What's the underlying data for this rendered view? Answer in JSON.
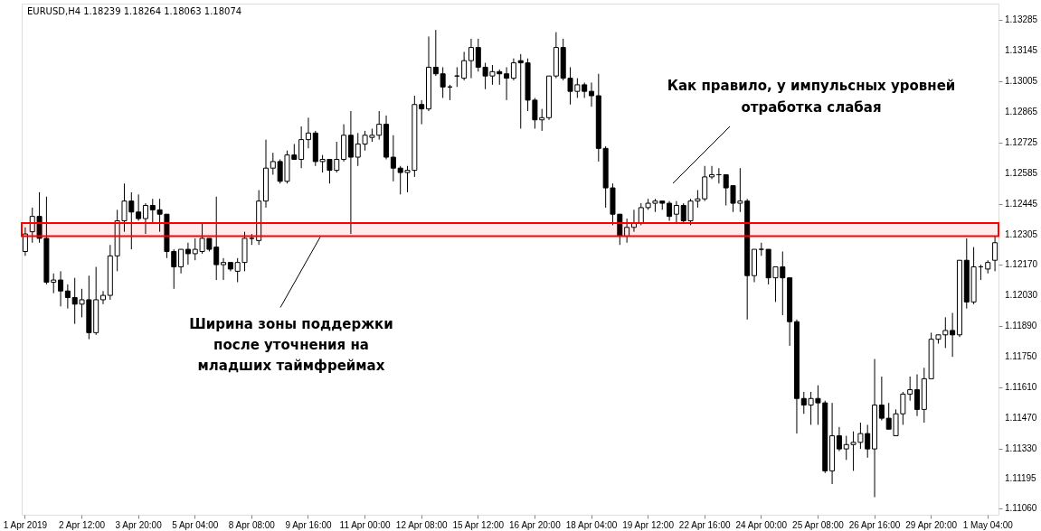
{
  "chart_data": {
    "type": "candlestick",
    "title": "EURUSD,H4  1.18239 1.18264 1.18063 1.18074",
    "categories": [
      "1 Apr 2019",
      null,
      null,
      null,
      null,
      null,
      null,
      null,
      "2 Apr 12:00",
      null,
      null,
      null,
      null,
      null,
      null,
      null,
      "3 Apr 20:00",
      null,
      null,
      null,
      null,
      null,
      null,
      null,
      "5 Apr 04:00",
      null,
      null,
      null,
      null,
      null,
      null,
      null,
      "8 Apr 08:00",
      null,
      null,
      null,
      null,
      null,
      null,
      null,
      "9 Apr 16:00",
      null,
      null,
      null,
      null,
      null,
      null,
      null,
      "11 Apr 00:00",
      null,
      null,
      null,
      null,
      null,
      null,
      null,
      "12 Apr 08:00",
      null,
      null,
      null,
      null,
      null,
      null,
      null,
      "15 Apr 12:00",
      null,
      null,
      null,
      null,
      null,
      null,
      null,
      "16 Apr 20:00",
      null,
      null,
      null,
      null,
      null,
      null,
      null,
      "18 Apr 04:00",
      null,
      null,
      null,
      null,
      null,
      null,
      null,
      "19 Apr 12:00",
      null,
      null,
      null,
      null,
      null,
      null,
      null,
      "22 Apr 16:00",
      null,
      null,
      null,
      null,
      null,
      null,
      null,
      "24 Apr 00:00",
      null,
      null,
      null,
      null,
      null,
      null,
      null,
      "25 Apr 08:00",
      null,
      null,
      null,
      null,
      null,
      null,
      null,
      "26 Apr 16:00",
      null,
      null,
      null,
      null,
      null,
      null,
      null,
      "29 Apr 20:00",
      null,
      null,
      null,
      null,
      null,
      null,
      null,
      "1 May 04:00",
      null
    ],
    "ohlc": [
      [
        1.1223,
        1.1234,
        1.1221,
        1.1231
      ],
      [
        1.1232,
        1.1243,
        1.1227,
        1.1239
      ],
      [
        1.1239,
        1.125,
        1.1227,
        1.1229
      ],
      [
        1.1229,
        1.1248,
        1.1208,
        1.1209
      ],
      [
        1.1209,
        1.1213,
        1.1204,
        1.121
      ],
      [
        1.121,
        1.1214,
        1.1198,
        1.1205
      ],
      [
        1.1205,
        1.1208,
        1.1197,
        1.1202
      ],
      [
        1.1202,
        1.1211,
        1.119,
        1.1199
      ],
      [
        1.1199,
        1.1206,
        1.1193,
        1.1201
      ],
      [
        1.1201,
        1.1212,
        1.1183,
        1.1186
      ],
      [
        1.1186,
        1.1216,
        1.1185,
        1.1201
      ],
      [
        1.1201,
        1.1205,
        1.1199,
        1.1203
      ],
      [
        1.1203,
        1.1226,
        1.1201,
        1.1221
      ],
      [
        1.1221,
        1.1242,
        1.1214,
        1.1237
      ],
      [
        1.1237,
        1.1254,
        1.1232,
        1.1246
      ],
      [
        1.1246,
        1.125,
        1.1224,
        1.1241
      ],
      [
        1.1241,
        1.1249,
        1.1237,
        1.1238
      ],
      [
        1.1238,
        1.1245,
        1.1231,
        1.1244
      ],
      [
        1.1244,
        1.1247,
        1.1236,
        1.1242
      ],
      [
        1.1242,
        1.1247,
        1.1232,
        1.124
      ],
      [
        1.124,
        1.124,
        1.122,
        1.1223
      ],
      [
        1.1223,
        1.1224,
        1.1206,
        1.1216
      ],
      [
        1.1216,
        1.1224,
        1.1213,
        1.1224
      ],
      [
        1.1224,
        1.1227,
        1.1217,
        1.1222
      ],
      [
        1.1222,
        1.1229,
        1.1219,
        1.1224
      ],
      [
        1.1223,
        1.1236,
        1.1222,
        1.1229
      ],
      [
        1.1229,
        1.1229,
        1.1223,
        1.1224
      ],
      [
        1.1225,
        1.1248,
        1.121,
        1.1217
      ],
      [
        1.1217,
        1.122,
        1.121,
        1.1218
      ],
      [
        1.1218,
        1.1218,
        1.1214,
        1.1215
      ],
      [
        1.1214,
        1.122,
        1.1209,
        1.1218
      ],
      [
        1.1218,
        1.1232,
        1.1214,
        1.1229
      ],
      [
        1.1229,
        1.1231,
        1.1226,
        1.1229
      ],
      [
        1.1228,
        1.1251,
        1.1226,
        1.1246
      ],
      [
        1.1246,
        1.1274,
        1.1243,
        1.1261
      ],
      [
        1.1261,
        1.1268,
        1.1258,
        1.1264
      ],
      [
        1.1264,
        1.1265,
        1.1254,
        1.1255
      ],
      [
        1.1255,
        1.1269,
        1.1254,
        1.1267
      ],
      [
        1.1267,
        1.1272,
        1.1265,
        1.1265
      ],
      [
        1.1265,
        1.128,
        1.1261,
        1.1274
      ],
      [
        1.1274,
        1.1284,
        1.127,
        1.1277
      ],
      [
        1.1277,
        1.1278,
        1.1262,
        1.1264
      ],
      [
        1.1264,
        1.1267,
        1.1259,
        1.1265
      ],
      [
        1.1265,
        1.1265,
        1.1254,
        1.126
      ],
      [
        1.126,
        1.1273,
        1.1259,
        1.1265
      ],
      [
        1.1265,
        1.1281,
        1.1264,
        1.1276
      ],
      [
        1.1276,
        1.1287,
        1.1231,
        1.1266
      ],
      [
        1.1266,
        1.1277,
        1.1262,
        1.1272
      ],
      [
        1.1272,
        1.1278,
        1.1269,
        1.1276
      ],
      [
        1.1275,
        1.1279,
        1.1273,
        1.1276
      ],
      [
        1.1276,
        1.1287,
        1.1274,
        1.1281
      ],
      [
        1.1281,
        1.1285,
        1.1265,
        1.1266
      ],
      [
        1.1266,
        1.1276,
        1.1255,
        1.1261
      ],
      [
        1.1261,
        1.1262,
        1.1249,
        1.1259
      ],
      [
        1.1259,
        1.1262,
        1.125,
        1.126
      ],
      [
        1.126,
        1.1294,
        1.1257,
        1.129
      ],
      [
        1.129,
        1.1292,
        1.1281,
        1.1288
      ],
      [
        1.1288,
        1.1321,
        1.1287,
        1.1307
      ],
      [
        1.1307,
        1.1324,
        1.1303,
        1.1304
      ],
      [
        1.1304,
        1.1307,
        1.1293,
        1.1298
      ],
      [
        1.1298,
        1.1299,
        1.1292,
        1.1298
      ],
      [
        1.1303,
        1.1307,
        1.1298,
        1.1303
      ],
      [
        1.1302,
        1.1314,
        1.1301,
        1.131
      ],
      [
        1.131,
        1.132,
        1.1302,
        1.1316
      ],
      [
        1.1316,
        1.132,
        1.1305,
        1.1307
      ],
      [
        1.1307,
        1.1309,
        1.1297,
        1.1303
      ],
      [
        1.1303,
        1.1308,
        1.1299,
        1.1305
      ],
      [
        1.1305,
        1.1306,
        1.1299,
        1.1304
      ],
      [
        1.1304,
        1.1307,
        1.1292,
        1.1302
      ],
      [
        1.1302,
        1.1311,
        1.1301,
        1.1309
      ],
      [
        1.131,
        1.1313,
        1.1279,
        1.1309
      ],
      [
        1.1309,
        1.1311,
        1.1287,
        1.1292
      ],
      [
        1.1292,
        1.1293,
        1.1279,
        1.1283
      ],
      [
        1.1283,
        1.1288,
        1.1278,
        1.1284
      ],
      [
        1.1284,
        1.1303,
        1.1283,
        1.1303
      ],
      [
        1.1303,
        1.1323,
        1.1302,
        1.1316
      ],
      [
        1.1316,
        1.132,
        1.1301,
        1.1302
      ],
      [
        1.1302,
        1.1307,
        1.129,
        1.1296
      ],
      [
        1.1296,
        1.1302,
        1.1293,
        1.1299
      ],
      [
        1.1299,
        1.13,
        1.1293,
        1.1296
      ],
      [
        1.1296,
        1.13,
        1.1289,
        1.1294
      ],
      [
        1.1294,
        1.1304,
        1.1264,
        1.127
      ],
      [
        1.127,
        1.1271,
        1.1243,
        1.1252
      ],
      [
        1.1252,
        1.1254,
        1.1235,
        1.124
      ],
      [
        1.124,
        1.124,
        1.1226,
        1.123
      ],
      [
        1.123,
        1.1238,
        1.1227,
        1.1234
      ],
      [
        1.1234,
        1.1242,
        1.1232,
        1.1236
      ],
      [
        1.1236,
        1.1245,
        1.1235,
        1.1243
      ],
      [
        1.1243,
        1.1247,
        1.1242,
        1.1245
      ],
      [
        1.1245,
        1.1247,
        1.1241,
        1.1246
      ],
      [
        1.1246,
        1.1246,
        1.1242,
        1.1245
      ],
      [
        1.1245,
        1.1246,
        1.1237,
        1.1239
      ],
      [
        1.124,
        1.1246,
        1.1236,
        1.1244
      ],
      [
        1.1244,
        1.1245,
        1.1236,
        1.1237
      ],
      [
        1.1237,
        1.1247,
        1.1235,
        1.1246
      ],
      [
        1.1246,
        1.1251,
        1.1243,
        1.1247
      ],
      [
        1.1247,
        1.1262,
        1.1246,
        1.1257
      ],
      [
        1.1257,
        1.1262,
        1.1256,
        1.1258
      ],
      [
        1.1258,
        1.1261,
        1.1254,
        1.1258
      ],
      [
        1.1258,
        1.1258,
        1.1244,
        1.1252
      ],
      [
        1.1253,
        1.1253,
        1.1241,
        1.1245
      ],
      [
        1.1245,
        1.1261,
        1.1241,
        1.1246
      ],
      [
        1.1246,
        1.1247,
        1.1192,
        1.1212
      ],
      [
        1.1212,
        1.1224,
        1.1209,
        1.1224
      ],
      [
        1.1224,
        1.1227,
        1.1221,
        1.1224
      ],
      [
        1.1224,
        1.1224,
        1.1208,
        1.1211
      ],
      [
        1.1211,
        1.1216,
        1.12,
        1.1216
      ],
      [
        1.1216,
        1.1223,
        1.1194,
        1.1211
      ],
      [
        1.1211,
        1.1211,
        1.118,
        1.1191
      ],
      [
        1.1191,
        1.1192,
        1.114,
        1.1156
      ],
      [
        1.1156,
        1.1159,
        1.1149,
        1.1153
      ],
      [
        1.1153,
        1.1159,
        1.1144,
        1.1156
      ],
      [
        1.1156,
        1.1162,
        1.1144,
        1.1154
      ],
      [
        1.1154,
        1.1155,
        1.1122,
        1.1123
      ],
      [
        1.1123,
        1.1154,
        1.1117,
        1.1139
      ],
      [
        1.1139,
        1.1143,
        1.1132,
        1.1133
      ],
      [
        1.1133,
        1.1139,
        1.1128,
        1.1135
      ],
      [
        1.1135,
        1.1141,
        1.1123,
        1.1136
      ],
      [
        1.1136,
        1.1145,
        1.1133,
        1.114
      ],
      [
        1.114,
        1.1144,
        1.1129,
        1.1133
      ],
      [
        1.1133,
        1.1174,
        1.1111,
        1.1153
      ],
      [
        1.1153,
        1.1166,
        1.1146,
        1.1147
      ],
      [
        1.1147,
        1.1154,
        1.1142,
        1.1142
      ],
      [
        1.1139,
        1.1151,
        1.1139,
        1.1149
      ],
      [
        1.1149,
        1.1159,
        1.1144,
        1.1158
      ],
      [
        1.1158,
        1.1166,
        1.1155,
        1.116
      ],
      [
        1.116,
        1.1167,
        1.1148,
        1.1151
      ],
      [
        1.1151,
        1.117,
        1.1145,
        1.1165
      ],
      [
        1.1165,
        1.1186,
        1.1165,
        1.1183
      ],
      [
        1.1183,
        1.1185,
        1.1181,
        1.1185
      ],
      [
        1.1185,
        1.1193,
        1.1179,
        1.1187
      ],
      [
        1.1187,
        1.1195,
        1.1175,
        1.1185
      ],
      [
        1.1185,
        1.1219,
        1.1184,
        1.1219
      ],
      [
        1.1219,
        1.1229,
        1.1197,
        1.12
      ],
      [
        1.12,
        1.1225,
        1.1199,
        1.1216
      ],
      [
        1.1216,
        1.1217,
        1.121,
        1.1216
      ],
      [
        1.1215,
        1.1219,
        1.1213,
        1.1218
      ],
      [
        1.1219,
        1.123,
        1.1214,
        1.1227
      ]
    ],
    "ylim": [
      1.1103,
      1.1336
    ],
    "yticks": [
      1.13285,
      1.13145,
      1.13005,
      1.12865,
      1.12725,
      1.12585,
      1.12445,
      1.12305,
      {
        "value": 1.1217,
        "label": "1.12170"
      },
      {
        "value": 1.1203,
        "label": "1.12030"
      },
      {
        "value": 1.1189,
        "label": "1.11890"
      },
      {
        "value": 1.1175,
        "label": "1.11750"
      },
      {
        "value": 1.1161,
        "label": "1.11610"
      },
      {
        "value": 1.1147,
        "label": "1.11470"
      },
      {
        "value": 1.1133,
        "label": "1.11330"
      },
      1.11195,
      {
        "value": 1.1106,
        "label": "1.11060"
      }
    ],
    "bands": [
      {
        "axis": "y",
        "from": 1.123,
        "to": 1.1236,
        "color": "#ff0000",
        "label": "Ширина зоны поддержки после уточнения на младших таймфреймах"
      }
    ],
    "annotations": [
      "Как правило, у импульсных уровней отработка слабая"
    ]
  }
}
